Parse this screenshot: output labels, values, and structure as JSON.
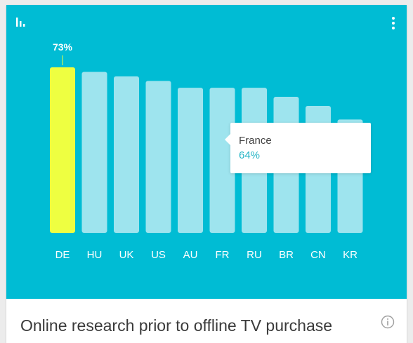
{
  "card": {
    "title": "Online research prior to offline TV purchase"
  },
  "icons": {
    "chart": "bar-chart-icon",
    "menu": "more-vertical-icon",
    "info": "info-icon"
  },
  "colors": {
    "panel_background": "#00bcd4",
    "bar": "#9ee4ee",
    "bar_highlight": "#eeff41",
    "label": "#ffffff",
    "tooltip_value": "#26b5c6"
  },
  "tooltip": {
    "name": "France",
    "value": "64%"
  },
  "chart_data": {
    "type": "bar",
    "categories": [
      "DE",
      "HU",
      "UK",
      "US",
      "AU",
      "FR",
      "RU",
      "BR",
      "CN",
      "KR"
    ],
    "values": [
      73,
      71,
      69,
      67,
      64,
      64,
      64,
      60,
      56,
      50
    ],
    "highlighted_category": "DE",
    "data_labels": {
      "DE": "73%"
    },
    "title": "",
    "xlabel": "",
    "ylabel": "",
    "ylim": [
      0,
      73
    ],
    "grid": false,
    "legend": "none"
  }
}
